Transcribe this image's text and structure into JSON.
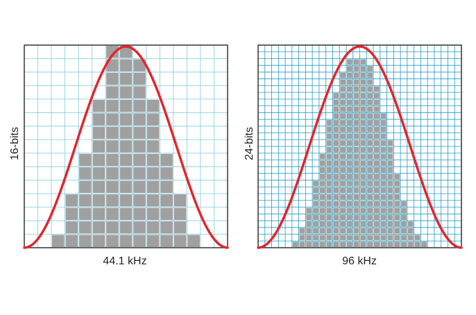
{
  "panels": [
    {
      "id": "left",
      "x_label": "44.1 kHz",
      "y_label": "16-bits",
      "grid_color": "#7fcbe0",
      "bar_color": "#a0a0a0",
      "curve_color": "#e3252d",
      "columns": [
        1,
        4,
        7,
        11,
        15,
        15,
        14,
        11,
        7,
        4,
        1
      ],
      "grid_cols": 15,
      "grid_rows": 15
    },
    {
      "id": "right",
      "x_label": "96 kHz",
      "y_label": "24-bits",
      "grid_color": "#1e9ac4",
      "bar_color": "#a0a0a0",
      "curve_color": "#e3252d",
      "columns": [
        1,
        3,
        6,
        10,
        14,
        19,
        23,
        26,
        28,
        28,
        28,
        27,
        24,
        20,
        16,
        11,
        7,
        4,
        2,
        1
      ],
      "grid_cols": 30,
      "grid_rows": 30
    }
  ]
}
